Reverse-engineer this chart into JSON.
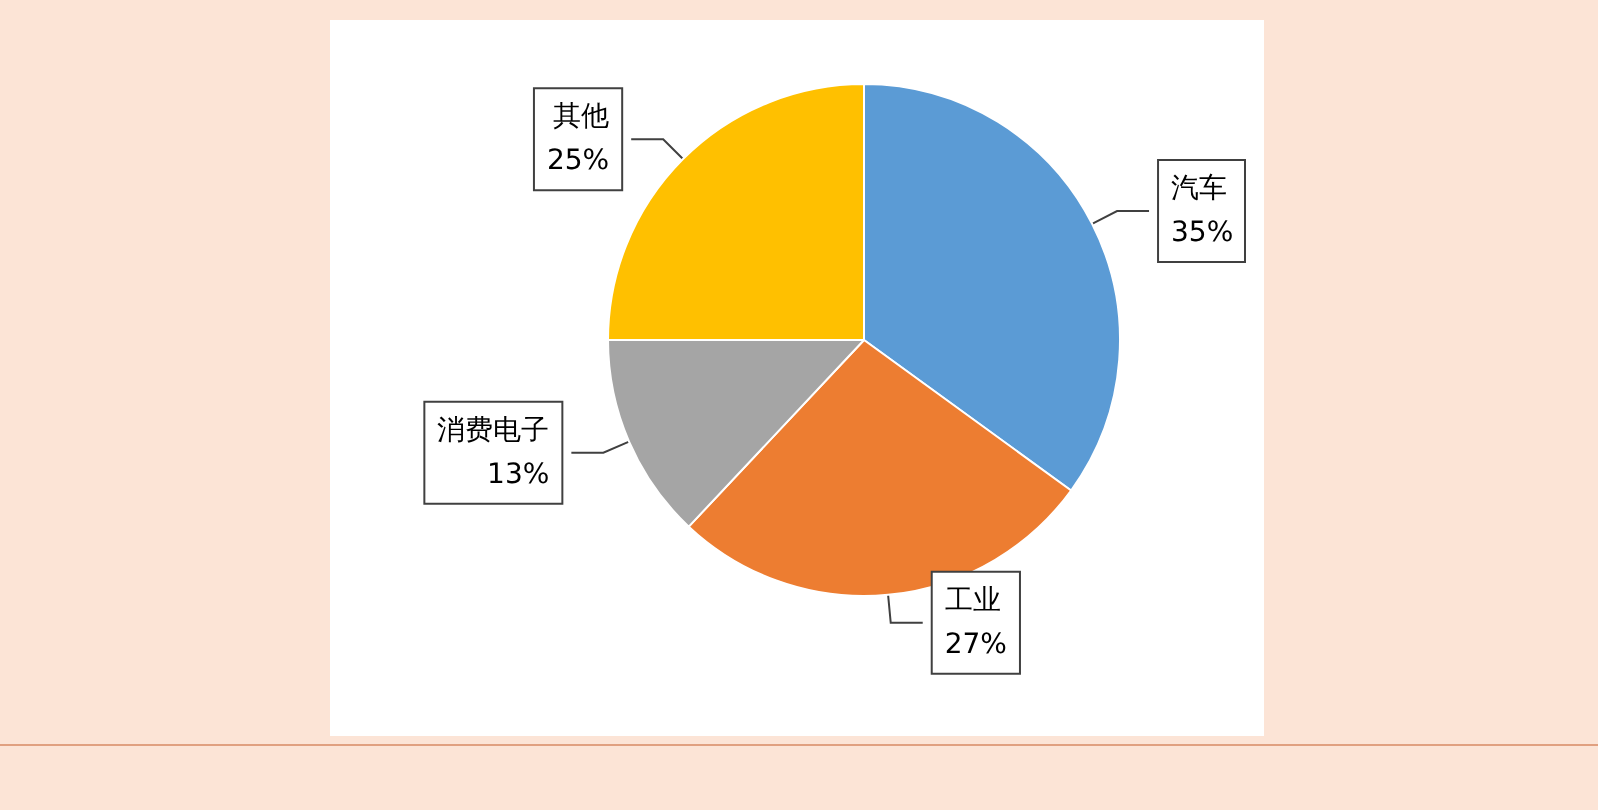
{
  "chart_data": {
    "type": "pie",
    "categories": [
      "汽车",
      "工业",
      "消费电子",
      "其他"
    ],
    "values": [
      35,
      27,
      13,
      25
    ],
    "colors": [
      "#5b9bd5",
      "#ed7d31",
      "#a5a5a5",
      "#ffc000"
    ],
    "value_labels": [
      "35%",
      "27%",
      "13%",
      "25%"
    ],
    "legend": false
  }
}
